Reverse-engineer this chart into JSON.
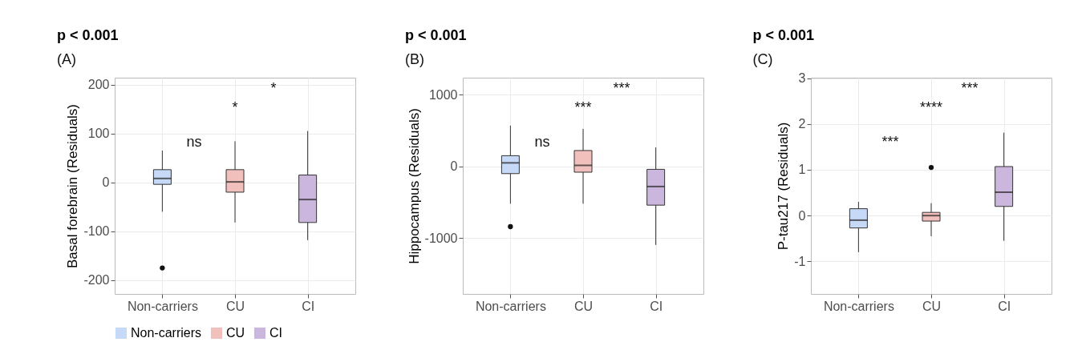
{
  "chart_data": [
    {
      "type": "box",
      "title": "p < 0.001",
      "ylabel": "Basal forebrain (Residuals)",
      "categories": [
        "Non-carriers",
        "CU",
        "CI"
      ],
      "series": [
        {
          "name": "Non-carriers",
          "color": "#c6d9f7",
          "boxes": [
            {
              "low": -60,
              "q1": -4,
              "median": 8,
              "q3": 26,
              "high": 65,
              "outliers": [
                -175
              ]
            },
            null,
            null
          ]
        },
        {
          "name": "CU",
          "color": "#f2c0bc",
          "boxes": [
            null,
            {
              "low": -82,
              "q1": -20,
              "median": 1,
              "q3": 26,
              "high": 84
            },
            null
          ]
        },
        {
          "name": "CI",
          "color": "#cbb6dd",
          "boxes": [
            null,
            null,
            {
              "low": -118,
              "q1": -82,
              "median": -35,
              "q3": 15,
              "high": 105
            }
          ]
        }
      ],
      "ylim": [
        -228,
        214
      ],
      "yticks": [
        -200,
        -100,
        0,
        100,
        200
      ],
      "grid": true,
      "legend": "bottom",
      "annotations": [
        "(A)",
        "ns",
        "*",
        "*"
      ]
    },
    {
      "type": "box",
      "title": "p < 0.001",
      "ylabel": "Hippocampus (Residuals)",
      "categories": [
        "Non-carriers",
        "CU",
        "CI"
      ],
      "series": [
        {
          "color": "#c6d9f7",
          "boxes": [
            {
              "low": -520,
              "q1": -100,
              "median": 50,
              "q3": 150,
              "high": 570,
              "outliers": [
                -840
              ]
            },
            null,
            null
          ]
        },
        {
          "color": "#f2c0bc",
          "boxes": [
            null,
            {
              "low": -520,
              "q1": -80,
              "median": 15,
              "q3": 222,
              "high": 524
            },
            null
          ]
        },
        {
          "color": "#cbb6dd",
          "boxes": [
            null,
            null,
            {
              "low": -1095,
              "q1": -540,
              "median": -280,
              "q3": -40,
              "high": 265
            }
          ]
        }
      ],
      "ylim": [
        -1778,
        1238
      ],
      "yticks": [
        -1000,
        0,
        1000
      ],
      "grid": true,
      "annotations": [
        "(B)",
        "ns",
        "***",
        "***"
      ]
    },
    {
      "type": "box",
      "title": "p < 0.001",
      "ylabel": "P-tau217 (Residuals)",
      "categories": [
        "Non-carriers",
        "CU",
        "CI"
      ],
      "series": [
        {
          "color": "#c6d9f7",
          "boxes": [
            {
              "low": -0.8,
              "q1": -0.27,
              "median": -0.1,
              "q3": 0.15,
              "high": 0.3
            },
            null,
            null
          ]
        },
        {
          "color": "#f2c0bc",
          "boxes": [
            null,
            {
              "low": -0.45,
              "q1": -0.12,
              "median": 0.0,
              "q3": 0.07,
              "high": 0.27,
              "outliers": [
                1.05
              ]
            },
            null
          ]
        },
        {
          "color": "#cbb6dd",
          "boxes": [
            null,
            null,
            {
              "low": -0.55,
              "q1": 0.2,
              "median": 0.51,
              "q3": 1.07,
              "high": 1.81
            }
          ]
        }
      ],
      "ylim": [
        -1.71,
        3.01
      ],
      "yticks": [
        -1,
        0,
        1,
        2,
        3
      ],
      "grid": true,
      "annotations": [
        "(C)",
        "***",
        "****",
        "***"
      ]
    }
  ]
}
